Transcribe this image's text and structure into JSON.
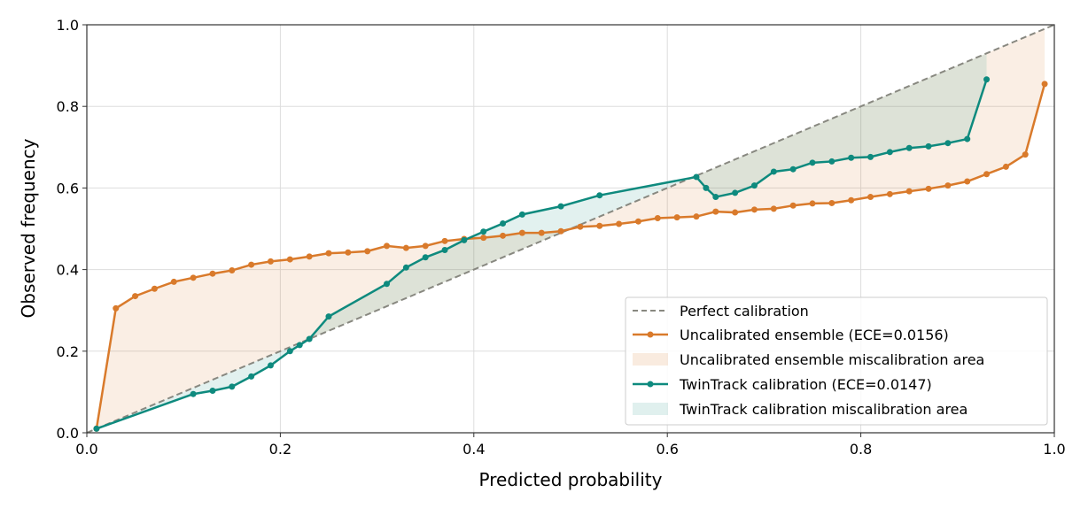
{
  "chart_data": {
    "type": "line",
    "title": "",
    "xlabel": "Predicted probability",
    "ylabel": "Observed frequency",
    "xlim": [
      0,
      1
    ],
    "ylim": [
      0,
      1
    ],
    "grid": true,
    "legend_placement": "lower-right",
    "xticks": [
      "0.0",
      "0.2",
      "0.4",
      "0.6",
      "0.8",
      "1.0"
    ],
    "yticks": [
      "0.0",
      "0.2",
      "0.4",
      "0.6",
      "0.8",
      "1.0"
    ],
    "colors": {
      "diagonal": "#888880",
      "uncalibrated": "#d97a2b",
      "twintrack": "#0e8a7e"
    },
    "legend": [
      "Perfect calibration",
      "Uncalibrated ensemble (ECE=0.0156)",
      "Uncalibrated ensemble miscalibration area",
      "TwinTrack calibration (ECE=0.0147)",
      "TwinTrack calibration miscalibration area"
    ],
    "series": [
      {
        "name": "Uncalibrated ensemble (ECE=0.0156)",
        "x": [
          0.01,
          0.03,
          0.05,
          0.07,
          0.09,
          0.11,
          0.13,
          0.15,
          0.17,
          0.19,
          0.21,
          0.23,
          0.25,
          0.27,
          0.29,
          0.31,
          0.33,
          0.35,
          0.37,
          0.39,
          0.41,
          0.43,
          0.45,
          0.47,
          0.49,
          0.51,
          0.53,
          0.55,
          0.57,
          0.59,
          0.61,
          0.63,
          0.65,
          0.67,
          0.69,
          0.71,
          0.73,
          0.75,
          0.77,
          0.79,
          0.81,
          0.83,
          0.85,
          0.87,
          0.89,
          0.91,
          0.93,
          0.95,
          0.97,
          0.99
        ],
        "y": [
          0.01,
          0.305,
          0.335,
          0.353,
          0.37,
          0.38,
          0.39,
          0.398,
          0.412,
          0.42,
          0.425,
          0.432,
          0.44,
          0.442,
          0.445,
          0.458,
          0.453,
          0.458,
          0.47,
          0.475,
          0.478,
          0.483,
          0.49,
          0.49,
          0.494,
          0.505,
          0.507,
          0.512,
          0.518,
          0.526,
          0.528,
          0.53,
          0.542,
          0.54,
          0.547,
          0.549,
          0.557,
          0.562,
          0.563,
          0.57,
          0.578,
          0.585,
          0.592,
          0.598,
          0.606,
          0.616,
          0.634,
          0.652,
          0.682,
          0.855
        ]
      },
      {
        "name": "TwinTrack calibration (ECE=0.0147)",
        "x": [
          0.01,
          0.11,
          0.13,
          0.15,
          0.17,
          0.19,
          0.21,
          0.22,
          0.23,
          0.25,
          0.31,
          0.33,
          0.35,
          0.37,
          0.39,
          0.41,
          0.43,
          0.45,
          0.49,
          0.53,
          0.63,
          0.64,
          0.65,
          0.67,
          0.69,
          0.71,
          0.73,
          0.75,
          0.77,
          0.79,
          0.81,
          0.83,
          0.85,
          0.87,
          0.89,
          0.91,
          0.93
        ],
        "y": [
          0.01,
          0.095,
          0.103,
          0.113,
          0.138,
          0.165,
          0.2,
          0.215,
          0.23,
          0.285,
          0.365,
          0.405,
          0.43,
          0.448,
          0.472,
          0.493,
          0.513,
          0.535,
          0.555,
          0.582,
          0.627,
          0.6,
          0.578,
          0.588,
          0.606,
          0.64,
          0.646,
          0.662,
          0.665,
          0.674,
          0.676,
          0.688,
          0.698,
          0.702,
          0.71,
          0.72,
          0.866
        ]
      }
    ]
  }
}
